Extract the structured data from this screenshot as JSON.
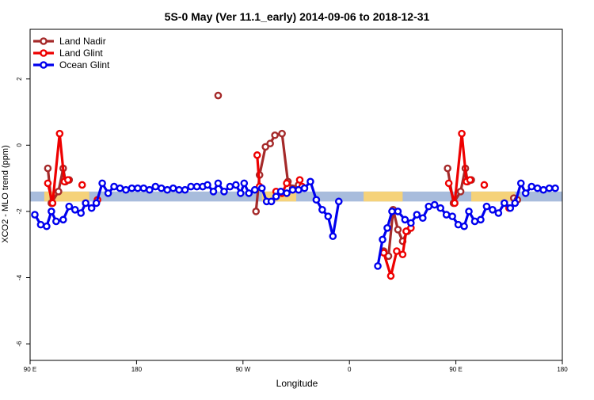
{
  "chart_data": {
    "type": "line",
    "title": "5S-0 May (Ver 11.1_early)   2014-09-06 to 2018-12-31",
    "xlabel": "Longitude",
    "ylabel": "XCO2 - MLO trend (ppm)",
    "xlim": [
      0,
      450
    ],
    "ylim": [
      -6.5,
      3.5
    ],
    "x_ticks": [
      {
        "v": 0,
        "label": "90 E"
      },
      {
        "v": 90,
        "label": "180"
      },
      {
        "v": 180,
        "label": "90 W"
      },
      {
        "v": 270,
        "label": "0"
      },
      {
        "v": 360,
        "label": "90 E"
      },
      {
        "v": 450,
        "label": "180"
      }
    ],
    "y_ticks": [
      {
        "v": 2,
        "label": "2"
      },
      {
        "v": 0,
        "label": "0"
      },
      {
        "v": -2,
        "label": "-2"
      },
      {
        "v": -4,
        "label": "-4"
      },
      {
        "v": -6,
        "label": "-6"
      }
    ],
    "grid": false,
    "legend_position": "top-left",
    "surface_band": {
      "y_range": [
        -1.7,
        -1.4
      ],
      "ocean_color": "#a8bcdc",
      "land_color": "#f5d27a",
      "land_spans": [
        [
          12,
          50
        ],
        [
          196,
          225
        ],
        [
          282,
          315
        ],
        [
          373,
          410
        ]
      ]
    },
    "series": [
      {
        "name": "Land Nadir",
        "color": "#a52a2a",
        "segments": [
          [
            [
              15,
              -0.7
            ],
            [
              18,
              -1.75
            ],
            [
              24,
              -1.4
            ],
            [
              28,
              -0.7
            ],
            [
              30,
              -1.1
            ],
            [
              33,
              -1.05
            ]
          ],
          [
            [
              159,
              1.5
            ]
          ],
          [
            [
              191,
              -2.0
            ],
            [
              194,
              -0.9
            ],
            [
              199,
              -0.05
            ],
            [
              203,
              0.05
            ],
            [
              207,
              0.3
            ],
            [
              213,
              0.35
            ],
            [
              218,
              -1.1
            ],
            [
              222,
              -1.3
            ],
            [
              227,
              -1.2
            ]
          ],
          [
            [
              353,
              -0.7
            ],
            [
              358,
              -1.75
            ],
            [
              364,
              -1.4
            ],
            [
              368,
              -0.7
            ],
            [
              370,
              -1.1
            ],
            [
              373,
              -1.05
            ]
          ],
          [
            [
              409,
              -1.6
            ],
            [
              412,
              -1.65
            ]
          ],
          [
            [
              299,
              -3.2
            ],
            [
              303,
              -3.35
            ],
            [
              307,
              -1.95
            ],
            [
              311,
              -2.55
            ],
            [
              315,
              -2.9
            ],
            [
              319,
              -2.6
            ]
          ]
        ]
      },
      {
        "name": "Land Glint",
        "color": "#ee0000",
        "segments": [
          [
            [
              15,
              -1.15
            ],
            [
              19,
              -1.75
            ],
            [
              25,
              0.35
            ],
            [
              29,
              -1.1
            ],
            [
              32,
              -1.05
            ]
          ],
          [
            [
              44,
              -1.2
            ]
          ],
          [
            [
              57,
              -1.65
            ]
          ],
          [
            [
              192,
              -0.3
            ],
            [
              194,
              -1.25
            ]
          ],
          [
            [
              208,
              -1.4
            ],
            [
              213,
              -1.45
            ],
            [
              217,
              -1.15
            ]
          ],
          [
            [
              228,
              -1.05
            ],
            [
              230,
              -1.25
            ]
          ],
          [
            [
              354,
              -1.15
            ],
            [
              359,
              -1.75
            ],
            [
              365,
              0.35
            ],
            [
              369,
              -1.1
            ],
            [
              372,
              -1.05
            ]
          ],
          [
            [
              384,
              -1.2
            ]
          ],
          [
            [
              405,
              -1.9
            ]
          ],
          [
            [
              299,
              -3.25
            ],
            [
              305,
              -3.95
            ],
            [
              310,
              -3.2
            ],
            [
              315,
              -3.3
            ],
            [
              318,
              -2.6
            ],
            [
              322,
              -2.5
            ]
          ]
        ]
      },
      {
        "name": "Ocean Glint",
        "color": "#0000ee",
        "segments": [
          [
            [
              4,
              -2.1
            ],
            [
              9,
              -2.4
            ],
            [
              14,
              -2.45
            ],
            [
              18,
              -2.0
            ],
            [
              22,
              -2.3
            ],
            [
              28,
              -2.25
            ],
            [
              33,
              -1.85
            ],
            [
              38,
              -1.95
            ],
            [
              43,
              -2.05
            ],
            [
              47,
              -1.75
            ],
            [
              52,
              -1.9
            ],
            [
              56,
              -1.75
            ],
            [
              61,
              -1.15
            ],
            [
              66,
              -1.45
            ],
            [
              71,
              -1.25
            ],
            [
              76,
              -1.3
            ],
            [
              81,
              -1.35
            ],
            [
              86,
              -1.3
            ],
            [
              91,
              -1.3
            ],
            [
              96,
              -1.3
            ],
            [
              101,
              -1.35
            ],
            [
              106,
              -1.25
            ],
            [
              111,
              -1.3
            ],
            [
              116,
              -1.35
            ],
            [
              121,
              -1.3
            ],
            [
              126,
              -1.35
            ],
            [
              131,
              -1.35
            ],
            [
              136,
              -1.25
            ],
            [
              141,
              -1.25
            ],
            [
              146,
              -1.25
            ],
            [
              150,
              -1.2
            ],
            [
              155,
              -1.4
            ],
            [
              159,
              -1.15
            ],
            [
              164,
              -1.4
            ],
            [
              169,
              -1.25
            ],
            [
              174,
              -1.2
            ],
            [
              178,
              -1.45
            ],
            [
              181,
              -1.15
            ],
            [
              185,
              -1.45
            ],
            [
              190,
              -1.35
            ]
          ],
          [
            [
              196,
              -1.3
            ],
            [
              200,
              -1.7
            ],
            [
              204,
              -1.7
            ],
            [
              208,
              -1.55
            ],
            [
              212,
              -1.4
            ],
            [
              217,
              -1.45
            ],
            [
              222,
              -1.35
            ],
            [
              227,
              -1.35
            ],
            [
              232,
              -1.3
            ],
            [
              237,
              -1.1
            ],
            [
              242,
              -1.65
            ],
            [
              247,
              -1.95
            ],
            [
              252,
              -2.15
            ],
            [
              256,
              -2.75
            ],
            [
              261,
              -1.7
            ]
          ],
          [
            [
              294,
              -3.65
            ],
            [
              298,
              -2.85
            ],
            [
              302,
              -2.5
            ],
            [
              306,
              -2.0
            ],
            [
              311,
              -2.0
            ],
            [
              317,
              -2.25
            ],
            [
              322,
              -2.35
            ],
            [
              327,
              -2.1
            ],
            [
              332,
              -2.2
            ],
            [
              337,
              -1.85
            ],
            [
              342,
              -1.8
            ],
            [
              347,
              -1.9
            ],
            [
              352,
              -2.1
            ],
            [
              357,
              -2.15
            ],
            [
              362,
              -2.4
            ],
            [
              367,
              -2.45
            ],
            [
              371,
              -2.0
            ],
            [
              376,
              -2.3
            ],
            [
              381,
              -2.25
            ],
            [
              386,
              -1.85
            ],
            [
              391,
              -1.95
            ],
            [
              396,
              -2.05
            ],
            [
              401,
              -1.75
            ],
            [
              406,
              -1.9
            ],
            [
              410,
              -1.75
            ],
            [
              415,
              -1.15
            ],
            [
              419,
              -1.45
            ],
            [
              424,
              -1.25
            ],
            [
              429,
              -1.3
            ],
            [
              434,
              -1.35
            ],
            [
              439,
              -1.3
            ],
            [
              444,
              -1.3
            ]
          ]
        ]
      }
    ]
  }
}
